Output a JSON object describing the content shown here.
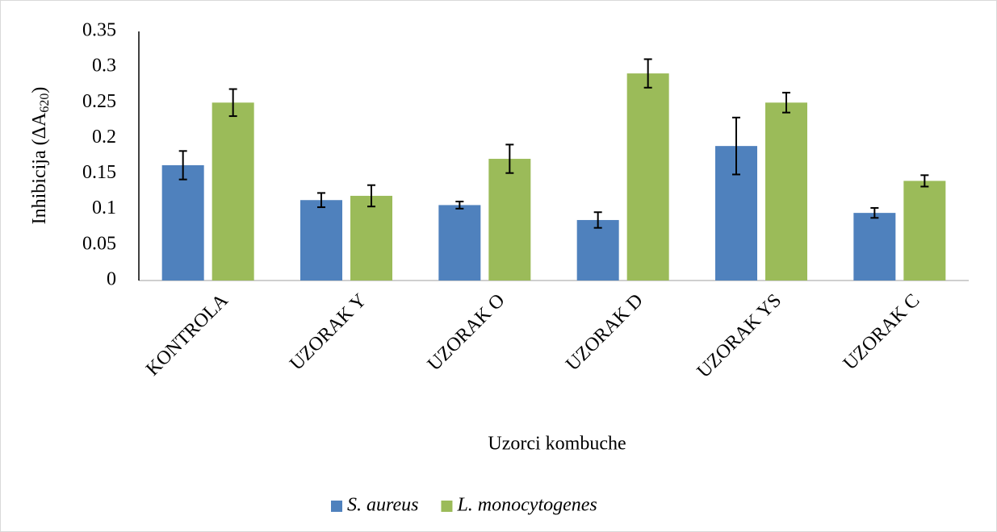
{
  "chart_data": {
    "type": "bar",
    "xlabel": "Uzorci kombuche",
    "ylabel": {
      "text": "Inhibicija (ΔA",
      "subscript": "620",
      "suffix": ")"
    },
    "categories": [
      "KONTROLA",
      "UZORAK Y",
      "UZORAK O",
      "UZORAK D",
      "UZORAK YS",
      "UZORAK C"
    ],
    "series": [
      {
        "name": "S. aureus",
        "color": "#4f81bd",
        "values": [
          0.162,
          0.113,
          0.106,
          0.085,
          0.189,
          0.095
        ],
        "errors": [
          0.02,
          0.01,
          0.005,
          0.011,
          0.04,
          0.007
        ]
      },
      {
        "name": "L. monocytogenes",
        "color": "#9bbb59",
        "values": [
          0.25,
          0.119,
          0.171,
          0.291,
          0.25,
          0.14
        ],
        "errors": [
          0.019,
          0.015,
          0.02,
          0.02,
          0.014,
          0.008
        ]
      }
    ],
    "ylim": [
      0,
      0.35
    ],
    "yticks": [
      0,
      0.05,
      0.1,
      0.15,
      0.2,
      0.25,
      0.3,
      0.35
    ],
    "grid": false,
    "legend": "bottom"
  }
}
